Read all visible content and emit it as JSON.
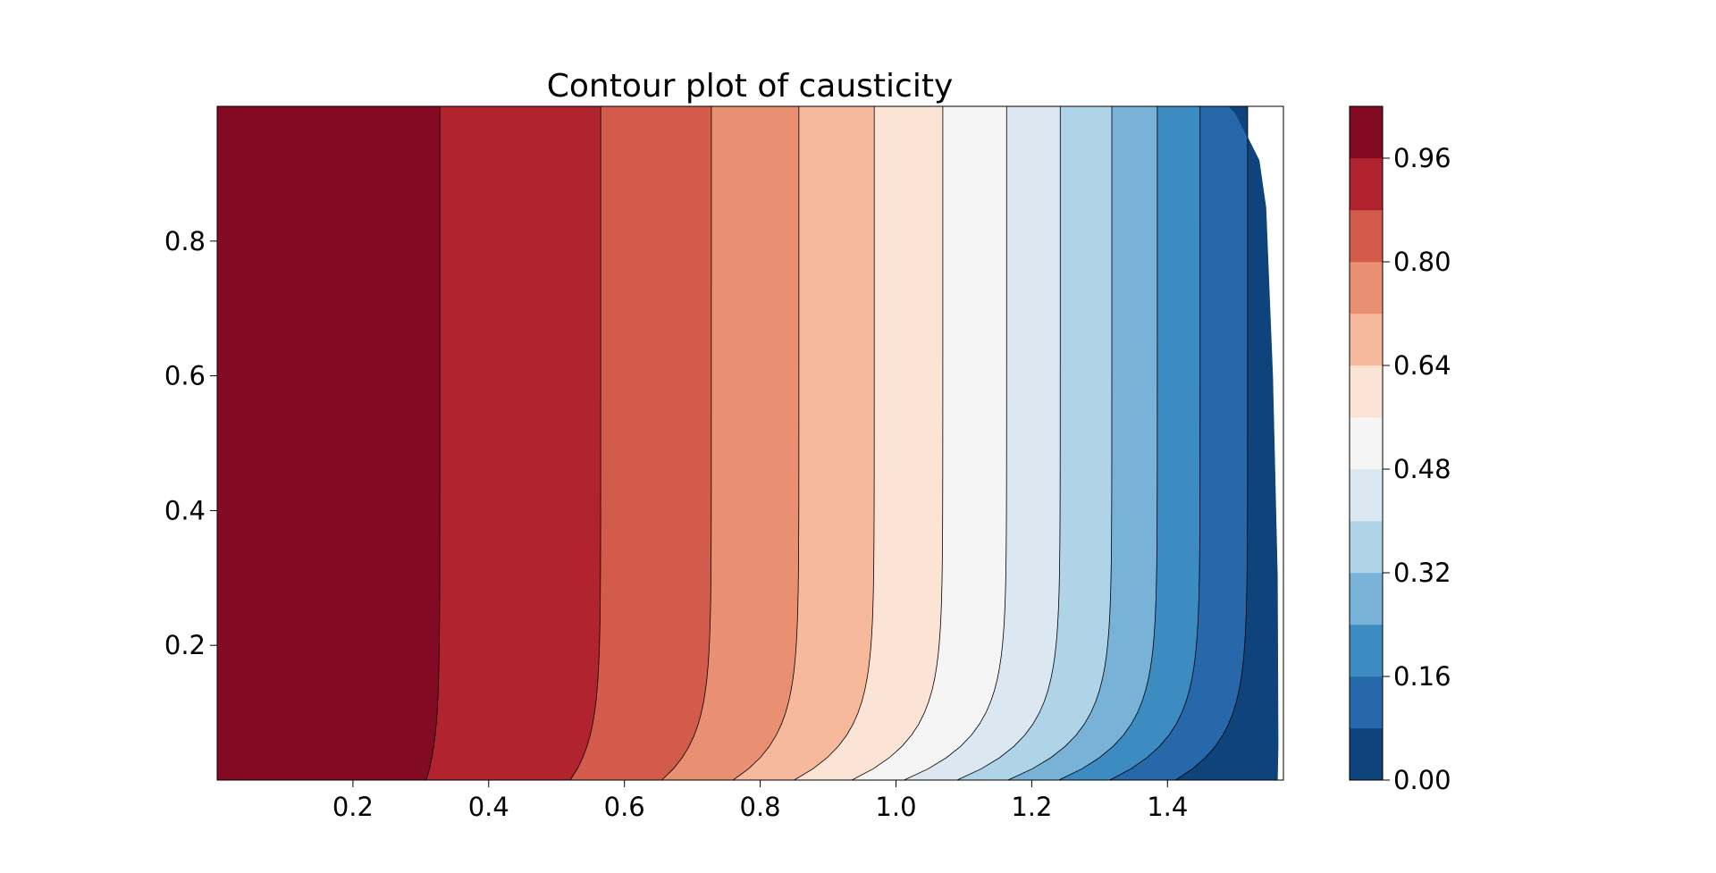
{
  "chart_data": {
    "type": "contourf",
    "title": "Contour plot of causticity",
    "xlabel": "",
    "ylabel": "",
    "xlim": [
      0.0,
      1.5708
    ],
    "ylim": [
      0.0,
      1.0
    ],
    "grid": false,
    "colormap": "RdBu",
    "x_ticks": [
      "0.2",
      "0.4",
      "0.6",
      "0.8",
      "1.0",
      "1.2",
      "1.4"
    ],
    "y_ticks": [
      "0.2",
      "0.4",
      "0.6",
      "0.8"
    ],
    "colorbar_ticks": [
      "0.00",
      "0.16",
      "0.32",
      "0.48",
      "0.64",
      "0.80",
      "0.96"
    ],
    "levels": [
      0.0,
      0.08,
      0.16,
      0.24,
      0.32,
      0.4,
      0.48,
      0.56,
      0.64,
      0.72,
      0.8,
      0.88,
      0.96,
      1.04
    ],
    "level_colors": [
      "#0f437b",
      "#2668aa",
      "#3c8bc1",
      "#78b2d6",
      "#afd4e7",
      "#dbe8f2",
      "#f5f5f5",
      "#fbe3d6",
      "#f7b99c",
      "#e99072",
      "#d25b4b",
      "#b1232f",
      "#820a23"
    ],
    "contour_boundaries": [
      {
        "level": 0.96,
        "x_top": 0.328,
        "x_bottom": 0.308
      },
      {
        "level": 0.88,
        "x_top": 0.565,
        "x_bottom": 0.52
      },
      {
        "level": 0.8,
        "x_top": 0.728,
        "x_bottom": 0.655
      },
      {
        "level": 0.72,
        "x_top": 0.857,
        "x_bottom": 0.76
      },
      {
        "level": 0.64,
        "x_top": 0.968,
        "x_bottom": 0.85
      },
      {
        "level": 0.56,
        "x_top": 1.069,
        "x_bottom": 0.935
      },
      {
        "level": 0.48,
        "x_top": 1.163,
        "x_bottom": 1.012
      },
      {
        "level": 0.4,
        "x_top": 1.242,
        "x_bottom": 1.09
      },
      {
        "level": 0.32,
        "x_top": 1.318,
        "x_bottom": 1.165
      },
      {
        "level": 0.24,
        "x_top": 1.385,
        "x_bottom": 1.24
      },
      {
        "level": 0.16,
        "x_top": 1.448,
        "x_bottom": 1.315
      },
      {
        "level": 0.08,
        "x_top": 1.518,
        "x_bottom": 1.412
      }
    ]
  }
}
